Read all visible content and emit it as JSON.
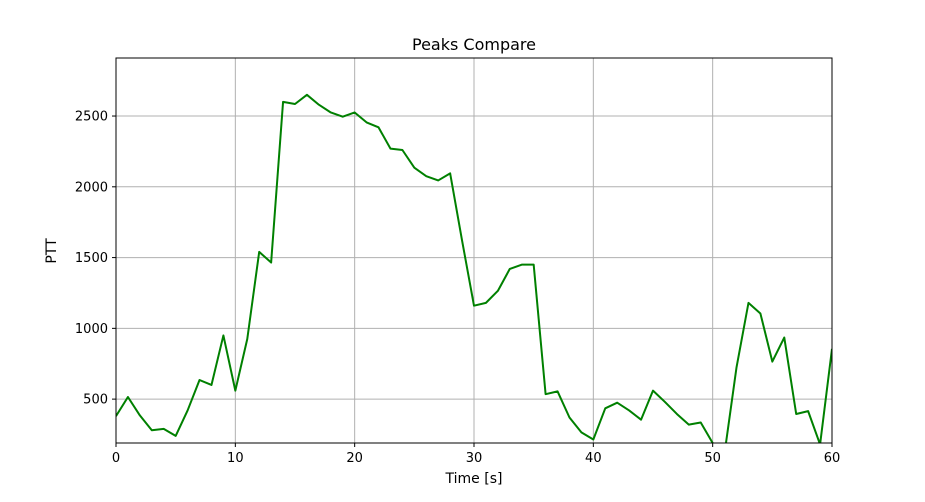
{
  "chart_data": {
    "type": "line",
    "title": "Peaks Compare",
    "xlabel": "Time [s]",
    "ylabel": "PTT",
    "xlim": [
      0,
      60
    ],
    "ylim": [
      190,
      2910
    ],
    "xticks": [
      0,
      10,
      20,
      30,
      40,
      50,
      60
    ],
    "yticks": [
      500,
      1000,
      1500,
      2000,
      2500
    ],
    "grid": true,
    "series": [
      {
        "color": "#008000",
        "x": [
          0,
          1,
          2,
          3,
          4,
          5,
          6,
          7,
          8,
          9,
          10,
          11,
          12,
          13,
          14,
          15,
          16,
          17,
          18,
          19,
          20,
          21,
          22,
          23,
          24,
          25,
          26,
          27,
          28,
          29,
          30,
          31,
          32,
          33,
          34,
          35,
          36,
          37,
          38,
          39,
          40,
          41,
          42,
          43,
          44,
          45,
          46,
          47,
          48,
          49,
          50,
          51,
          52,
          53,
          54,
          55,
          56,
          57,
          58,
          59,
          60
        ],
        "values": [
          380,
          515,
          385,
          280,
          290,
          240,
          420,
          635,
          600,
          950,
          560,
          925,
          1540,
          1465,
          2600,
          2585,
          2650,
          2580,
          2525,
          2495,
          2525,
          2455,
          2420,
          2270,
          2260,
          2135,
          2075,
          2045,
          2095,
          1620,
          1160,
          1180,
          1265,
          1420,
          1450,
          1450,
          535,
          555,
          370,
          265,
          215,
          435,
          475,
          420,
          355,
          560,
          480,
          395,
          320,
          335,
          190,
          120,
          725,
          1180,
          1105,
          765,
          935,
          395,
          415,
          180,
          855
        ]
      }
    ]
  }
}
